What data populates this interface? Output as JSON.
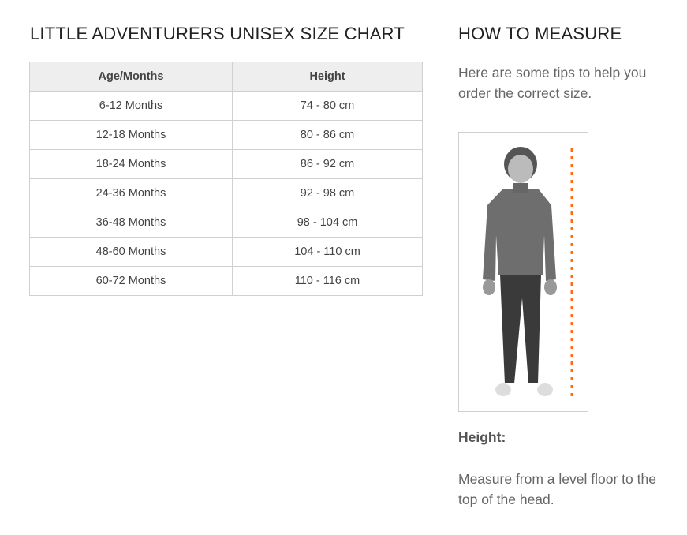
{
  "size_chart": {
    "title": "LITTLE ADVENTURERS UNISEX SIZE CHART",
    "headers": [
      "Age/Months",
      "Height"
    ],
    "rows": [
      [
        "6-12 Months",
        "74 - 80 cm"
      ],
      [
        "12-18 Months",
        "80 - 86 cm"
      ],
      [
        "18-24 Months",
        "86 - 92 cm"
      ],
      [
        "24-36 Months",
        "92 - 98 cm"
      ],
      [
        "36-48 Months",
        "98 - 104 cm"
      ],
      [
        "48-60 Months",
        "104 - 110 cm"
      ],
      [
        "60-72 Months",
        "110 - 116 cm"
      ]
    ]
  },
  "how_to_measure": {
    "title": "HOW TO MEASURE",
    "intro": "Here are some tips to help you order the correct size.",
    "height_label": "Height:",
    "height_desc": "Measure from a level floor to the top of the head.",
    "measure_line_color": "#ff6a13"
  }
}
